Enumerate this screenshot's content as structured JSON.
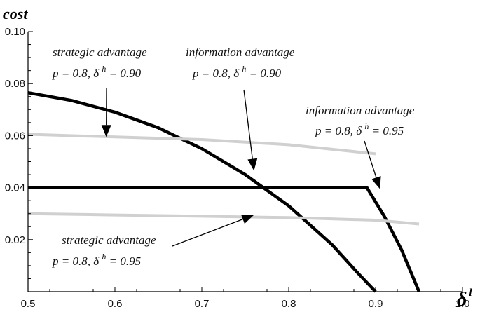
{
  "chart_data": {
    "type": "line",
    "xlabel": "δ",
    "xlabel_superscript": "l",
    "ylabel": "cost",
    "xlim": [
      0.5,
      1.0
    ],
    "ylim": [
      0.0,
      0.1
    ],
    "grid": false,
    "x_ticks": [
      "0.5",
      "0.6",
      "0.7",
      "0.8",
      "0.9",
      "1.0"
    ],
    "y_ticks": [
      "0.02",
      "0.04",
      "0.06",
      "0.08",
      "0.10"
    ],
    "series": [
      {
        "color": "#000000",
        "x": [
          0.5,
          0.55,
          0.6,
          0.65,
          0.7,
          0.75,
          0.8,
          0.85,
          0.88,
          0.9
        ],
        "y": [
          0.0765,
          0.0735,
          0.069,
          0.063,
          0.055,
          0.045,
          0.033,
          0.018,
          0.007,
          0.0
        ]
      },
      {
        "color": "#000000",
        "x": [
          0.5,
          0.6,
          0.7,
          0.8,
          0.89,
          0.91,
          0.93,
          0.95
        ],
        "y": [
          0.04,
          0.04,
          0.04,
          0.04,
          0.04,
          0.029,
          0.016,
          0.0
        ]
      },
      {
        "color": "#d0d0d0",
        "x": [
          0.5,
          0.6,
          0.7,
          0.8,
          0.9
        ],
        "y": [
          0.0605,
          0.0595,
          0.0585,
          0.0565,
          0.053
        ]
      },
      {
        "color": "#d0d0d0",
        "x": [
          0.5,
          0.6,
          0.7,
          0.8,
          0.9,
          0.95
        ],
        "y": [
          0.03,
          0.0295,
          0.029,
          0.0285,
          0.0275,
          0.026
        ]
      }
    ],
    "annotations": [
      {
        "line1": "strategic advantage",
        "line2": "p = 0.8,  δ h = 0.90",
        "target": [
          0.59,
          0.0595
        ]
      },
      {
        "line1": "information advantage",
        "line2": "p = 0.8,  δ h = 0.90",
        "target": [
          0.76,
          0.0465
        ]
      },
      {
        "line1": "information advantage",
        "line2": "p = 0.8,  δ h = 0.95",
        "target": [
          0.905,
          0.0395
        ]
      },
      {
        "line1": "strategic advantage",
        "line2": "p = 0.8,  δ h = 0.95",
        "target": [
          0.76,
          0.0295
        ]
      }
    ]
  }
}
